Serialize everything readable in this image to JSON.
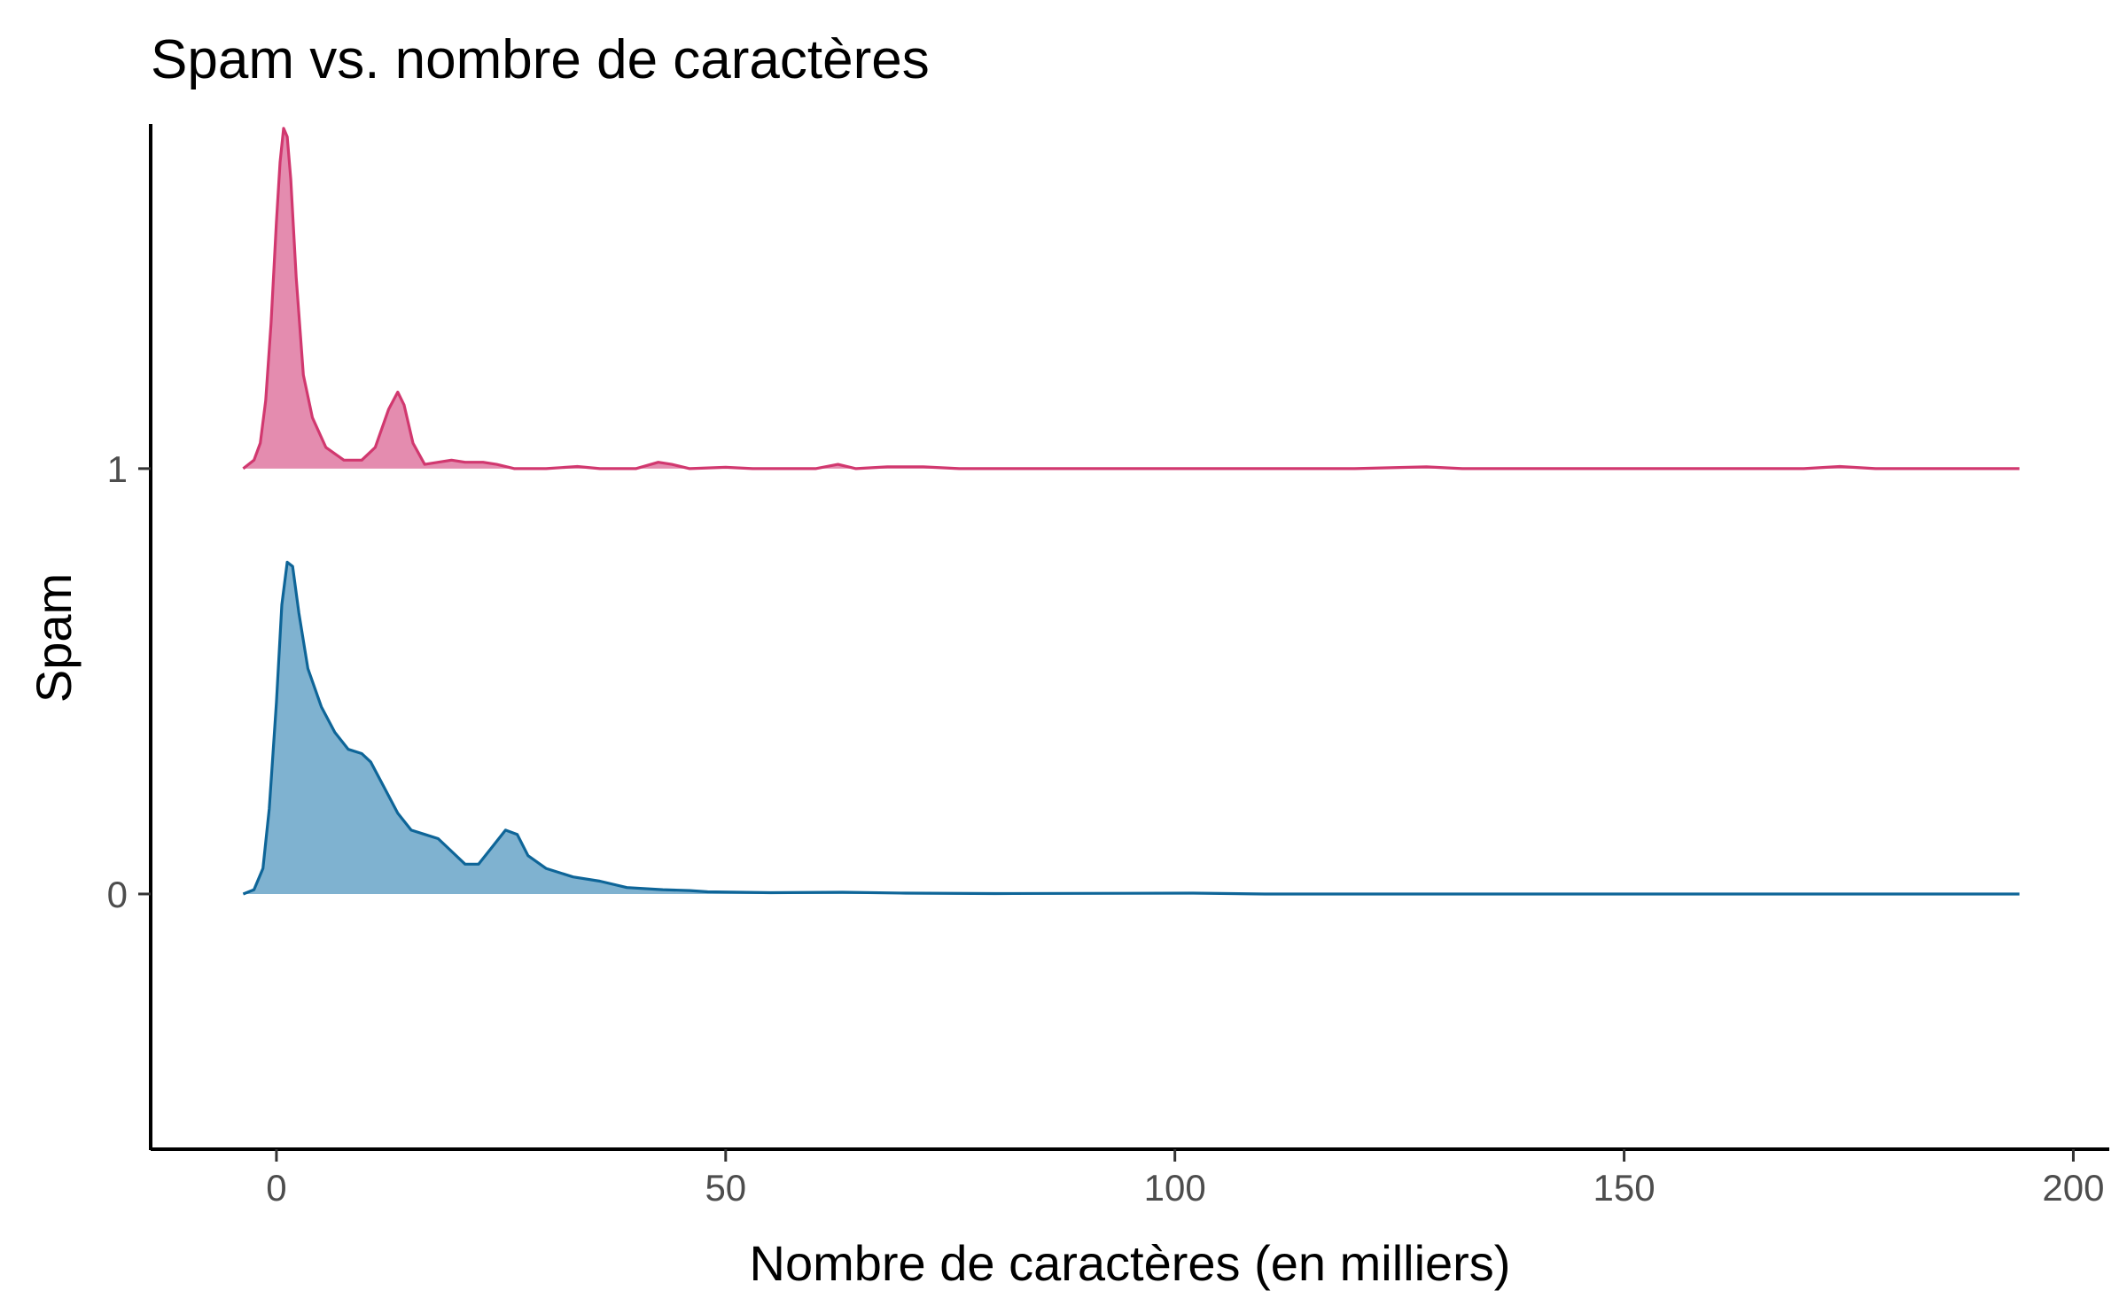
{
  "chart_data": {
    "type": "ridgeline-density",
    "title": "Spam vs. nombre de caractères",
    "xlabel": "Nombre de caractères (en milliers)",
    "ylabel": "Spam",
    "xlim": [
      -14,
      204
    ],
    "x_ticks": [
      0,
      50,
      100,
      150,
      200
    ],
    "x_tick_labels": [
      "0",
      "50",
      "100",
      "150",
      "200"
    ],
    "y_categories": [
      "0",
      "1"
    ],
    "ylim": [
      -0.6,
      1.81
    ],
    "grid": false,
    "legend": "none",
    "series": [
      {
        "category": "1",
        "baseline": 1,
        "color": "#d1386f",
        "fill": "#e48caf",
        "points": [
          [
            -3.7,
            1.0
          ],
          [
            -2.5,
            1.02
          ],
          [
            -1.8,
            1.06
          ],
          [
            -1.2,
            1.16
          ],
          [
            -0.6,
            1.34
          ],
          [
            0.0,
            1.58
          ],
          [
            0.4,
            1.72
          ],
          [
            0.8,
            1.8
          ],
          [
            1.2,
            1.78
          ],
          [
            1.6,
            1.68
          ],
          [
            2.2,
            1.45
          ],
          [
            3.0,
            1.22
          ],
          [
            4.0,
            1.12
          ],
          [
            5.5,
            1.05
          ],
          [
            7.5,
            1.02
          ],
          [
            9.5,
            1.02
          ],
          [
            11.0,
            1.05
          ],
          [
            12.5,
            1.14
          ],
          [
            13.5,
            1.18
          ],
          [
            14.2,
            1.15
          ],
          [
            15.2,
            1.06
          ],
          [
            16.5,
            1.01
          ],
          [
            18.0,
            1.015
          ],
          [
            19.5,
            1.02
          ],
          [
            21.0,
            1.015
          ],
          [
            23.0,
            1.015
          ],
          [
            24.5,
            1.01
          ],
          [
            26.5,
            1.0
          ],
          [
            30.0,
            1.0
          ],
          [
            33.5,
            1.005
          ],
          [
            36.0,
            1.0
          ],
          [
            40.0,
            1.0
          ],
          [
            42.5,
            1.015
          ],
          [
            44.0,
            1.01
          ],
          [
            46.0,
            1.0
          ],
          [
            50.0,
            1.003
          ],
          [
            53.0,
            1.0
          ],
          [
            60.0,
            1.0
          ],
          [
            62.5,
            1.01
          ],
          [
            64.5,
            1.0
          ],
          [
            68.0,
            1.004
          ],
          [
            72.0,
            1.004
          ],
          [
            76.0,
            1.0
          ],
          [
            120.0,
            1.0
          ],
          [
            128.0,
            1.004
          ],
          [
            132.0,
            1.0
          ],
          [
            170.0,
            1.0
          ],
          [
            174.0,
            1.005
          ],
          [
            178.0,
            1.0
          ],
          [
            194.0,
            1.0
          ]
        ]
      },
      {
        "category": "0",
        "baseline": 0,
        "color": "#0e6598",
        "fill": "#7fb2d0",
        "points": [
          [
            -3.7,
            0.0
          ],
          [
            -2.5,
            0.01
          ],
          [
            -1.5,
            0.06
          ],
          [
            -0.8,
            0.2
          ],
          [
            0.0,
            0.45
          ],
          [
            0.6,
            0.68
          ],
          [
            1.2,
            0.78
          ],
          [
            1.8,
            0.77
          ],
          [
            2.5,
            0.66
          ],
          [
            3.5,
            0.53
          ],
          [
            5.0,
            0.44
          ],
          [
            6.5,
            0.38
          ],
          [
            8.0,
            0.34
          ],
          [
            9.5,
            0.33
          ],
          [
            10.5,
            0.31
          ],
          [
            12.0,
            0.25
          ],
          [
            13.5,
            0.19
          ],
          [
            15.0,
            0.15
          ],
          [
            16.5,
            0.14
          ],
          [
            18.0,
            0.13
          ],
          [
            19.5,
            0.1
          ],
          [
            21.0,
            0.07
          ],
          [
            22.5,
            0.07
          ],
          [
            24.0,
            0.11
          ],
          [
            25.5,
            0.15
          ],
          [
            26.8,
            0.14
          ],
          [
            28.0,
            0.09
          ],
          [
            30.0,
            0.06
          ],
          [
            33.0,
            0.04
          ],
          [
            36.0,
            0.03
          ],
          [
            39.0,
            0.015
          ],
          [
            43.0,
            0.01
          ],
          [
            46.0,
            0.008
          ],
          [
            48.0,
            0.005
          ],
          [
            55.0,
            0.003
          ],
          [
            63.0,
            0.004
          ],
          [
            70.0,
            0.002
          ],
          [
            80.0,
            0.001
          ],
          [
            102.0,
            0.002
          ],
          [
            110.0,
            0.0
          ],
          [
            194.0,
            0.0
          ]
        ]
      }
    ]
  }
}
